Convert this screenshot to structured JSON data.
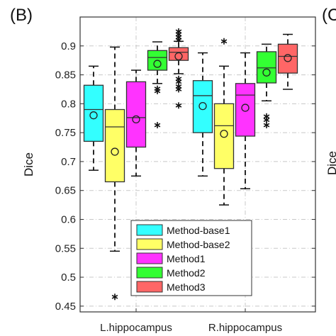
{
  "panel_label": "(B)",
  "panel_label_next": "(C",
  "clipped_next_ylabel": "Dice",
  "chart_data": {
    "type": "boxplot",
    "ylabel": "Dice",
    "xlabel": "",
    "ylim": [
      0.44,
      0.95
    ],
    "yticks": [
      0.45,
      0.5,
      0.55,
      0.6,
      0.65,
      0.7,
      0.75,
      0.8,
      0.85,
      0.9
    ],
    "ytick_labels": [
      "0.45",
      "0.5",
      "0.55",
      "0.6",
      "0.65",
      "0.7",
      "0.75",
      "0.8",
      "0.85",
      "0.9"
    ],
    "grid": true,
    "legend_position": "bottom-right",
    "categories": [
      "L.hippocampus",
      "R.hippocampus"
    ],
    "series": [
      {
        "name": "Method-base1",
        "color": "#33ffff",
        "boxes": [
          {
            "whisker_low": 0.685,
            "q1": 0.735,
            "median": 0.79,
            "q3": 0.832,
            "whisker_high": 0.865,
            "mean": 0.78,
            "outliers": []
          },
          {
            "whisker_low": 0.675,
            "q1": 0.75,
            "median": 0.814,
            "q3": 0.84,
            "whisker_high": 0.888,
            "mean": 0.796,
            "outliers": []
          }
        ]
      },
      {
        "name": "Method-base2",
        "color": "#ffff66",
        "boxes": [
          {
            "whisker_low": 0.545,
            "q1": 0.665,
            "median": 0.76,
            "q3": 0.79,
            "whisker_high": 0.898,
            "mean": 0.717,
            "outliers": [
              0.466
            ]
          },
          {
            "whisker_low": 0.625,
            "q1": 0.688,
            "median": 0.762,
            "q3": 0.8,
            "whisker_high": 0.865,
            "mean": 0.748,
            "outliers": [
              0.908
            ]
          }
        ]
      },
      {
        "name": "Method1",
        "color": "#ff33ff",
        "boxes": [
          {
            "whisker_low": 0.675,
            "q1": 0.725,
            "median": 0.776,
            "q3": 0.838,
            "whisker_high": 0.858,
            "mean": 0.773,
            "outliers": []
          },
          {
            "whisker_low": 0.653,
            "q1": 0.744,
            "median": 0.815,
            "q3": 0.835,
            "whisker_high": 0.888,
            "mean": 0.793,
            "outliers": []
          }
        ]
      },
      {
        "name": "Method2",
        "color": "#33ff33",
        "boxes": [
          {
            "whisker_low": 0.835,
            "q1": 0.858,
            "median": 0.88,
            "q3": 0.892,
            "whisker_high": 0.907,
            "mean": 0.869,
            "outliers": [
              0.826,
              0.822,
              0.763
            ]
          },
          {
            "whisker_low": 0.805,
            "q1": 0.836,
            "median": 0.862,
            "q3": 0.89,
            "whisker_high": 0.903,
            "mean": 0.854,
            "outliers": [
              0.778,
              0.772,
              0.763
            ]
          }
        ]
      },
      {
        "name": "Method3",
        "color": "#ff6666",
        "boxes": [
          {
            "whisker_low": 0.852,
            "q1": 0.875,
            "median": 0.889,
            "q3": 0.897,
            "whisker_high": 0.908,
            "mean": 0.882,
            "outliers": [
              0.925,
              0.92,
              0.915,
              0.91,
              0.843,
              0.838,
              0.83,
              0.825,
              0.797
            ]
          },
          {
            "whisker_low": 0.825,
            "q1": 0.853,
            "median": 0.882,
            "q3": 0.903,
            "whisker_high": 0.92,
            "mean": 0.879,
            "outliers": []
          }
        ]
      }
    ]
  }
}
